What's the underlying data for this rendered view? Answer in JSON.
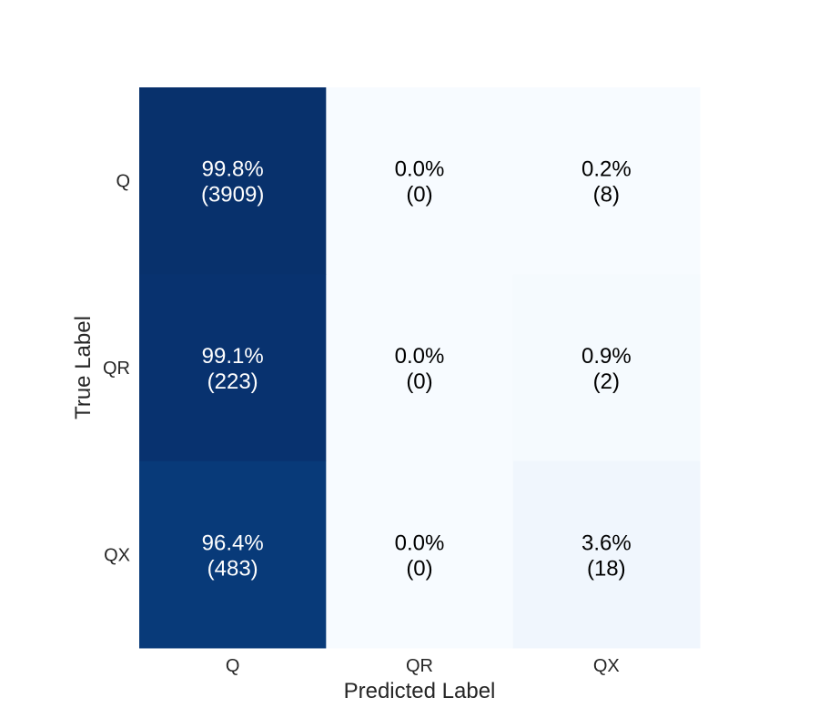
{
  "chart_data": {
    "type": "heatmap",
    "xlabel": "Predicted Label",
    "ylabel": "True Label",
    "x_categories": [
      "Q",
      "QR",
      "QX"
    ],
    "y_categories": [
      "Q",
      "QR",
      "QX"
    ],
    "percent_values": [
      [
        99.8,
        0.0,
        0.2
      ],
      [
        99.1,
        0.0,
        0.9
      ],
      [
        96.4,
        0.0,
        3.6
      ]
    ],
    "count_values": [
      [
        3909,
        0,
        8
      ],
      [
        223,
        0,
        2
      ],
      [
        483,
        0,
        18
      ]
    ],
    "cell_labels": [
      [
        [
          "99.8%",
          "(3909)"
        ],
        [
          "0.0%",
          "(0)"
        ],
        [
          "0.2%",
          "(8)"
        ]
      ],
      [
        [
          "99.1%",
          "(223)"
        ],
        [
          "0.0%",
          "(0)"
        ],
        [
          "0.9%",
          "(2)"
        ]
      ],
      [
        [
          "96.4%",
          "(483)"
        ],
        [
          "0.0%",
          "(0)"
        ],
        [
          "3.6%",
          "(18)"
        ]
      ]
    ],
    "colormap": "Blues",
    "color_range": [
      0,
      100
    ],
    "colorbar": false,
    "grid": false,
    "colors": {
      "low": "#f7fbff",
      "mid": "#6baed6",
      "high": "#08306b",
      "text_dark": "#000000",
      "text_light": "#ffffff"
    }
  }
}
